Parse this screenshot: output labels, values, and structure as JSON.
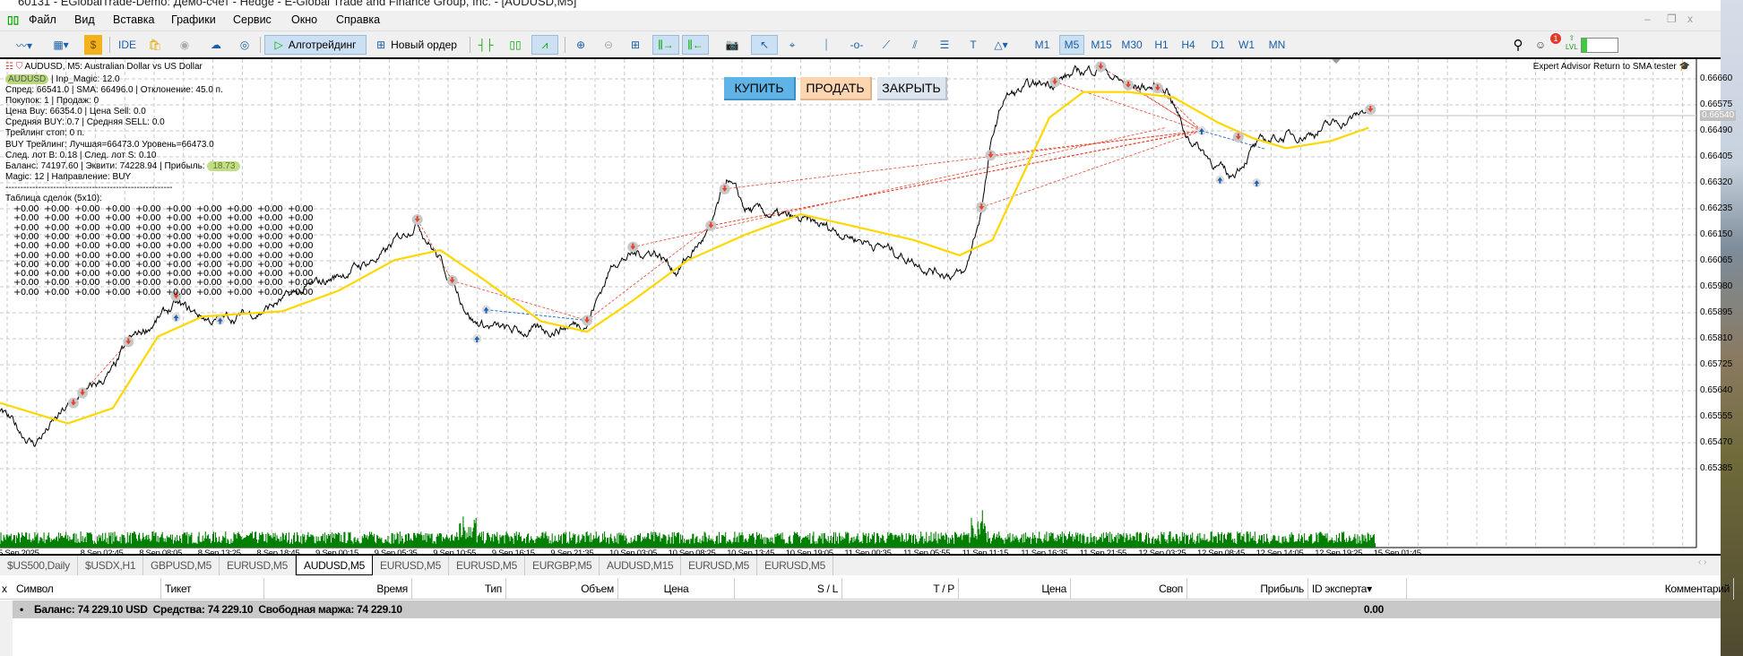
{
  "window": {
    "title": "60131 - EGlobalTrade-Demo: Демо-счет - Hedge - E-Global Trade and Finance Group, Inc. - [AUDUSD,M5]"
  },
  "menu": [
    "Файл",
    "Вид",
    "Вставка",
    "Графики",
    "Сервис",
    "Окно",
    "Справка"
  ],
  "toolbar": {
    "ide": "IDE",
    "algotrading": "Алготрейдинг",
    "new_order": "Новый ордер",
    "timeframes": [
      "M1",
      "M5",
      "M15",
      "M30",
      "H1",
      "H4",
      "D1",
      "W1",
      "MN"
    ],
    "active_timeframe": "M5",
    "notifications": "1",
    "level_label": "LVL",
    "level_fill": 0.15
  },
  "chart": {
    "header": "AUDUSD, M5:  Australian Dollar vs US Dollar",
    "ea_name": "Expert Advisor Return to SMA tester",
    "info": {
      "symbol": "AUDUSD",
      "magic_line": "| Inp_Magic: 12.0",
      "spread": "Спред: 66541.0 | SMA: 66496.0 | Отклонение: 45.0 п.",
      "counts": "Покупок: 1 | Продаж: 0",
      "prices": "Цена Buy: 66354.0 | Цена Sell: 0.0",
      "averages": "Средняя BUY: 0.7 | Средняя SELL: 0.0",
      "trailing": "Трейлинг стоп: 0 п.",
      "buy_trailing": "BUY Трейлинг: Лучшая=66473.0 Уровень=66473.0",
      "next_lots": "След. лот B: 0.18 | След. лот S: 0.10",
      "balance_line": "Баланс: 74197.60 | Эквити: 74228.94 | Прибыль:",
      "profit": "18.73",
      "magic_dir": "Magic: 12 | Направление: BUY",
      "divider": "--------------------------------------------------------",
      "table_title": "Таблица сделок (5x10):",
      "table_cell": "+0.00"
    },
    "buttons": {
      "buy": "КУПИТЬ",
      "sell": "ПРОДАТЬ",
      "close": "ЗАКРЫТЬ"
    },
    "colors": {
      "buy": "#5fb3e6",
      "sell": "#fdd5b1",
      "close": "#dde5ee",
      "sma": "#ffd700",
      "volume": "#008000",
      "price": "#000000",
      "trade_line": "#e8412c"
    },
    "price_axis": [
      "0.66660",
      "0.66575",
      "0.66490",
      "0.66405",
      "0.66320",
      "0.66235",
      "0.66150",
      "0.66065",
      "0.65980",
      "0.65895",
      "0.65810",
      "0.65725",
      "0.65640",
      "0.65555",
      "0.65470",
      "0.65385"
    ],
    "current_price": "0.66540",
    "time_axis": [
      "5 Sep 2025",
      "8 Sep 02:45",
      "8 Sep 08:05",
      "8 Sep 13:25",
      "8 Sep 18:45",
      "9 Sep 00:15",
      "9 Sep 05:35",
      "9 Sep 10:55",
      "9 Sep 16:15",
      "9 Sep 21:35",
      "10 Sep 03:05",
      "10 Sep 08:25",
      "10 Sep 13:45",
      "10 Sep 19:05",
      "11 Sep 00:35",
      "11 Sep 05:55",
      "11 Sep 11:15",
      "11 Sep 16:35",
      "11 Sep 21:55",
      "12 Sep 03:25",
      "12 Sep 08:45",
      "12 Sep 14:05",
      "12 Sep 19:25",
      "15 Sep 01:45"
    ],
    "price_path": [
      [
        0,
        65567
      ],
      [
        37,
        65467
      ],
      [
        74,
        65583
      ],
      [
        123,
        65700
      ],
      [
        141,
        65800
      ],
      [
        191,
        65917
      ],
      [
        234,
        65867
      ],
      [
        283,
        65900
      ],
      [
        332,
        65967
      ],
      [
        369,
        66017
      ],
      [
        418,
        66083
      ],
      [
        455,
        66200
      ],
      [
        492,
        66000
      ],
      [
        517,
        65867
      ],
      [
        554,
        65833
      ],
      [
        590,
        65833
      ],
      [
        640,
        65867
      ],
      [
        670,
        66067
      ],
      [
        713,
        66100
      ],
      [
        738,
        66033
      ],
      [
        775,
        66167
      ],
      [
        793,
        66333
      ],
      [
        812,
        66233
      ],
      [
        861,
        66200
      ],
      [
        910,
        66167
      ],
      [
        972,
        66100
      ],
      [
        1021,
        66033
      ],
      [
        1052,
        66017
      ],
      [
        1070,
        66233
      ],
      [
        1082,
        66467
      ],
      [
        1095,
        66600
      ],
      [
        1144,
        66650
      ],
      [
        1199,
        66700
      ],
      [
        1230,
        66633
      ],
      [
        1273,
        66633
      ],
      [
        1292,
        66483
      ],
      [
        1341,
        66333
      ],
      [
        1365,
        66433
      ],
      [
        1390,
        66467
      ],
      [
        1427,
        66483
      ],
      [
        1476,
        66533
      ],
      [
        1494,
        66567
      ]
    ],
    "sma_path": [
      [
        0,
        65600
      ],
      [
        74,
        65533
      ],
      [
        123,
        65583
      ],
      [
        172,
        65817
      ],
      [
        221,
        65883
      ],
      [
        308,
        65900
      ],
      [
        369,
        65967
      ],
      [
        430,
        66067
      ],
      [
        480,
        66100
      ],
      [
        529,
        66000
      ],
      [
        590,
        65867
      ],
      [
        640,
        65833
      ],
      [
        689,
        65933
      ],
      [
        750,
        66067
      ],
      [
        812,
        66150
      ],
      [
        873,
        66217
      ],
      [
        923,
        66183
      ],
      [
        996,
        66133
      ],
      [
        1046,
        66083
      ],
      [
        1082,
        66133
      ],
      [
        1113,
        66333
      ],
      [
        1144,
        66533
      ],
      [
        1181,
        66617
      ],
      [
        1230,
        66617
      ],
      [
        1279,
        66600
      ],
      [
        1328,
        66517
      ],
      [
        1365,
        66467
      ],
      [
        1402,
        66433
      ],
      [
        1451,
        66457
      ],
      [
        1492,
        66500
      ]
    ]
  },
  "tabs": [
    "$US500,Daily",
    "$USDX,H1",
    "GBPUSD,M5",
    "EURUSD,M5",
    "AUDUSD,M5",
    "EURUSD,M5",
    "EURUSD,M5",
    "EURGBP,M5",
    "AUDUSD,M15",
    "EURUSD,M5",
    "EURUSD,M5"
  ],
  "active_tab": "AUDUSD,M5",
  "trade_table": {
    "columns": [
      "Символ",
      "Тикет",
      "Время",
      "Тип",
      "Объем",
      "Цена",
      "S / L",
      "T / P",
      "Цена",
      "Своп",
      "Прибыль",
      "ID эксперта",
      "Комментарий"
    ],
    "balance_text": "Баланс: 74 229.10 USD  Средства: 74 229.10  Свободная маржа: 74 229.10",
    "total_profit": "0.00"
  }
}
